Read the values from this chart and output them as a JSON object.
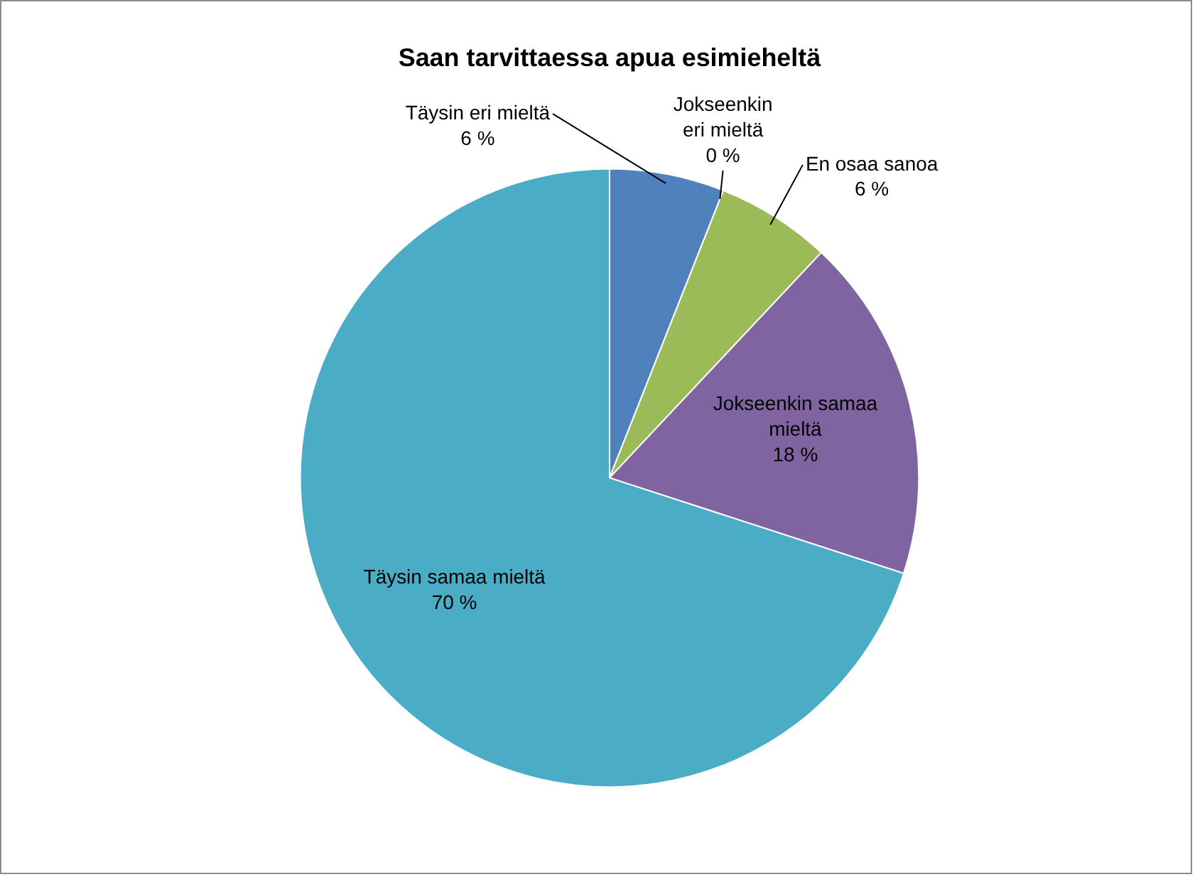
{
  "chart_data": {
    "type": "pie",
    "title": "Saan tarvittaessa apua esimieheltä",
    "categories": [
      "Täysin eri mieltä",
      "Jokseenkin eri mieltä",
      "En osaa sanoa",
      "Jokseenkin samaa mieltä",
      "Täysin samaa mieltä"
    ],
    "values": [
      6,
      0,
      6,
      18,
      70
    ],
    "colors": [
      "#4f81bd",
      "#c0504d",
      "#9bbb59",
      "#8064a2",
      "#4bacc6"
    ],
    "value_labels": [
      "6 %",
      "0 %",
      "6 %",
      "18 %",
      "70 %"
    ]
  }
}
